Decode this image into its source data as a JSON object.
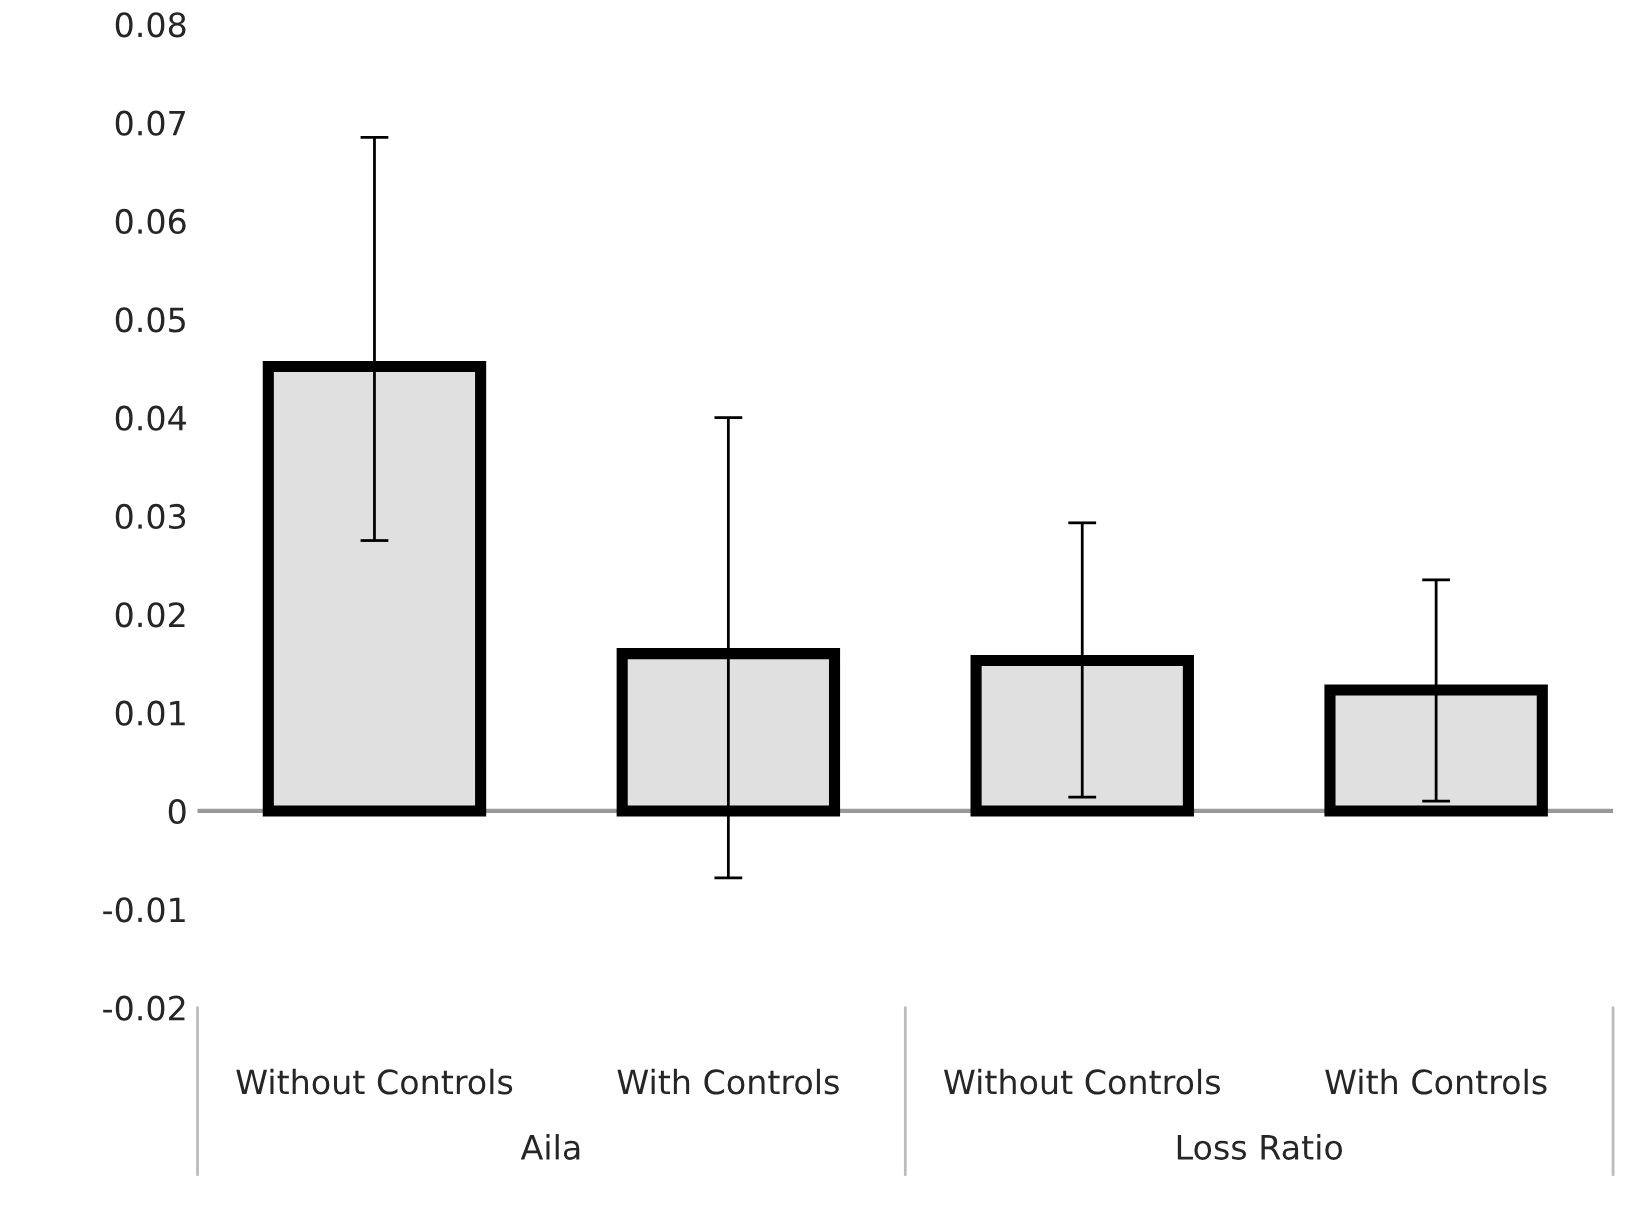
{
  "chart_data": {
    "type": "bar",
    "categories": [
      "Without Controls",
      "With Controls",
      "Without Controls",
      "With Controls"
    ],
    "annotations": [
      "Aila",
      "Loss Ratio"
    ],
    "ref_lines": [
      {
        "axis": "y",
        "value": 0,
        "color": "#999999"
      }
    ],
    "values": [
      0.0452,
      0.016,
      0.0153,
      0.0123
    ],
    "errors": [
      [
        0.0275,
        0.0685
      ],
      [
        -0.0068,
        0.04
      ],
      [
        0.0014,
        0.0293
      ],
      [
        0.001,
        0.0235
      ]
    ],
    "color": "#e0e0e0",
    "ylim": [
      -0.02,
      0.08
    ],
    "yticks": [
      {
        "value": -0.02,
        "label": "-0.02"
      },
      {
        "value": -0.01,
        "label": "-0.01"
      },
      {
        "value": 0,
        "label": "0"
      },
      {
        "value": 0.01,
        "label": "0.01"
      },
      {
        "value": 0.02,
        "label": "0.02"
      },
      {
        "value": 0.03,
        "label": "0.03"
      },
      {
        "value": 0.04,
        "label": "0.04"
      },
      {
        "value": 0.05,
        "label": "0.05"
      },
      {
        "value": 0.06,
        "label": "0.06"
      },
      {
        "value": 0.07,
        "label": "0.07"
      },
      {
        "value": 0.08,
        "label": "0.08"
      }
    ],
    "legend": false
  }
}
